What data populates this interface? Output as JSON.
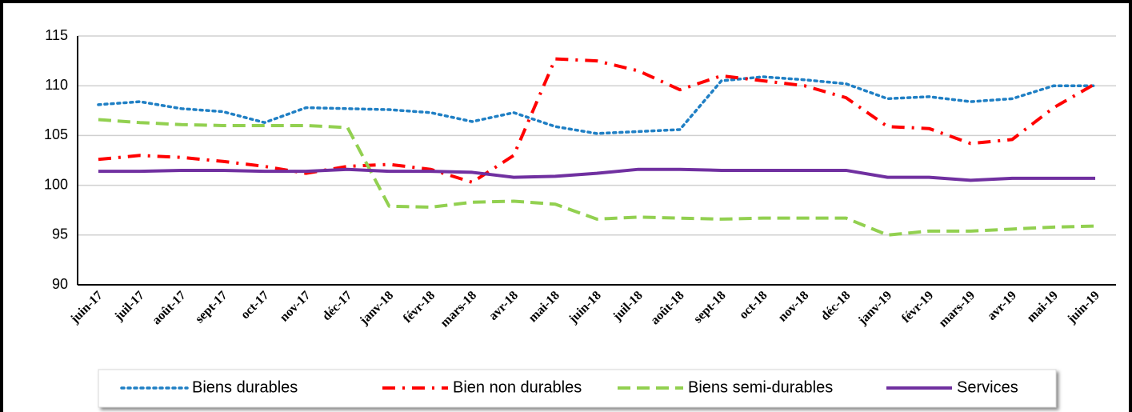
{
  "chart_data": {
    "type": "line",
    "categories": [
      "juin-17",
      "juil-17",
      "août-17",
      "sept-17",
      "oct-17",
      "nov-17",
      "déc-17",
      "janv-18",
      "févr-18",
      "mars-18",
      "avr-18",
      "mai-18",
      "juin-18",
      "juil-18",
      "août-18",
      "sept-18",
      "oct-18",
      "nov-18",
      "déc-18",
      "janv-19",
      "févr-19",
      "mars-19",
      "avr-19",
      "mai-19",
      "juin-19"
    ],
    "series": [
      {
        "name": "Biens durables",
        "color": "#1f7fc4",
        "dash": "dotted",
        "values": [
          108.1,
          108.4,
          107.7,
          107.4,
          106.3,
          107.8,
          107.7,
          107.6,
          107.3,
          106.4,
          107.3,
          105.9,
          105.2,
          105.4,
          105.6,
          110.5,
          110.9,
          110.6,
          110.2,
          108.7,
          108.9,
          108.4,
          108.7,
          110.0,
          110.0
        ]
      },
      {
        "name": "Bien non durables",
        "color": "#ff0000",
        "dash": "dash-dot",
        "values": [
          102.6,
          103.0,
          102.8,
          102.4,
          101.9,
          101.2,
          101.9,
          102.1,
          101.6,
          100.3,
          103.0,
          112.7,
          112.5,
          111.5,
          109.6,
          111.0,
          110.5,
          110.0,
          108.8,
          105.9,
          105.7,
          104.2,
          104.6,
          107.8,
          110.2
        ]
      },
      {
        "name": "Biens semi-durables",
        "color": "#92d050",
        "dash": "dashed",
        "values": [
          106.6,
          106.3,
          106.1,
          106.0,
          106.0,
          106.0,
          105.8,
          97.9,
          97.8,
          98.3,
          98.4,
          98.1,
          96.6,
          96.8,
          96.7,
          96.6,
          96.7,
          96.7,
          96.7,
          95.0,
          95.4,
          95.4,
          95.6,
          95.8,
          95.9
        ]
      },
      {
        "name": "Services",
        "color": "#7030a0",
        "dash": "solid",
        "values": [
          101.4,
          101.4,
          101.5,
          101.5,
          101.4,
          101.4,
          101.6,
          101.4,
          101.4,
          101.3,
          100.8,
          100.9,
          101.2,
          101.6,
          101.6,
          101.5,
          101.5,
          101.5,
          101.5,
          100.8,
          100.8,
          100.5,
          100.7,
          100.7,
          100.7
        ]
      }
    ],
    "ylim": [
      90,
      115
    ],
    "yticks": [
      90,
      95,
      100,
      105,
      110,
      115
    ],
    "grid": true,
    "legend": "bottom"
  }
}
